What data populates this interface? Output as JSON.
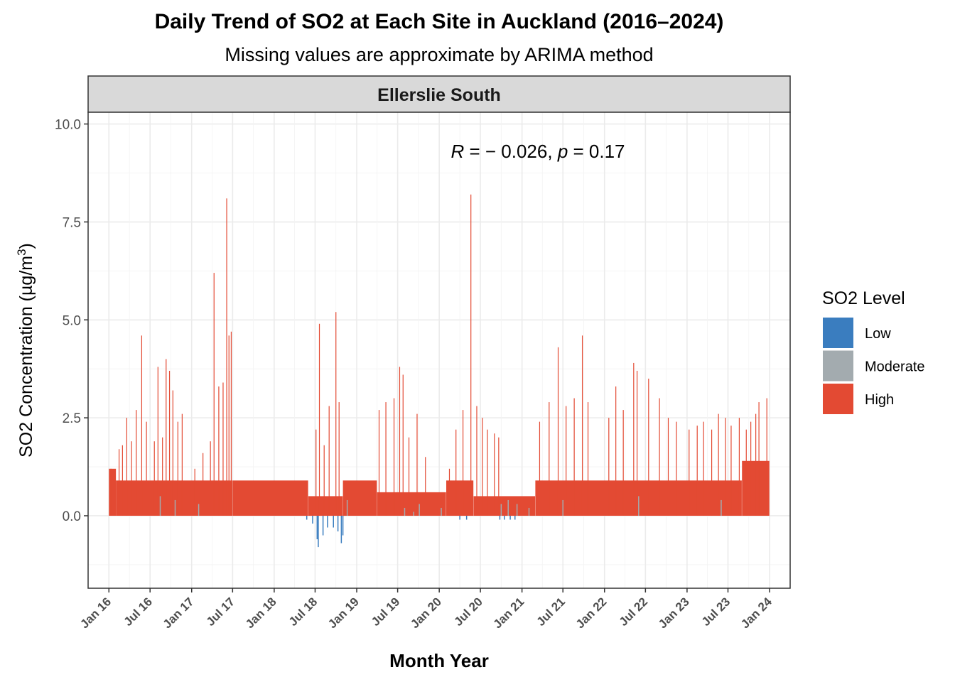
{
  "title": "Daily Trend of SO2 at Each Site in Auckland (2016–2024)",
  "subtitle": "Missing values are approximate by ARIMA method",
  "facet": "Ellerslie South",
  "annotation": {
    "r_label": "R",
    "r_value": " = − 0.026, ",
    "p_label": "p",
    "p_value": " = 0.17"
  },
  "chart_data": {
    "type": "bar",
    "title": "Daily Trend of SO2 at Each Site in Auckland (2016–2024)",
    "subtitle": "Missing values are approximate by ARIMA method",
    "facet": "Ellerslie South",
    "xlabel": "Month Year",
    "ylabel": "SO2 Concentration (µg/m³)",
    "ylabel_parts": {
      "main": "SO2 Concentration (µg/m",
      "sup": "3",
      "close": ")"
    },
    "xlim": [
      "2015-10-01",
      "2024-04-01"
    ],
    "ylim": [
      -1.85,
      10.3
    ],
    "yticks": [
      0.0,
      2.5,
      5.0,
      7.5,
      10.0
    ],
    "ytick_labels": [
      "0.0",
      "2.5",
      "5.0",
      "7.5",
      "10.0"
    ],
    "xticks": [
      "2016-01-01",
      "2016-07-01",
      "2017-01-01",
      "2017-07-01",
      "2018-01-01",
      "2018-07-01",
      "2019-01-01",
      "2019-07-01",
      "2020-01-01",
      "2020-07-01",
      "2021-01-01",
      "2021-07-01",
      "2022-01-01",
      "2022-07-01",
      "2023-01-01",
      "2023-07-01",
      "2024-01-01"
    ],
    "xtick_labels": [
      "Jan 16",
      "Jul 16",
      "Jan 17",
      "Jul 17",
      "Jan 18",
      "Jul 18",
      "Jan 19",
      "Jul 19",
      "Jan 20",
      "Jul 20",
      "Jan 21",
      "Jul 21",
      "Jan 22",
      "Jul 22",
      "Jan 23",
      "Jul 23",
      "Jan 24"
    ],
    "grid": true,
    "legend": {
      "title": "SO2 Level",
      "placement": "right",
      "items": [
        {
          "label": "Low",
          "color": "#3A7DBF"
        },
        {
          "label": "Moderate",
          "color": "#A3ABAF"
        },
        {
          "label": "High",
          "color": "#E34A33"
        }
      ]
    },
    "correlation": {
      "R": -0.026,
      "p": 0.17
    },
    "series": [
      {
        "name": "High",
        "color": "#E34A33",
        "segments": [
          {
            "start": "2016-01-01",
            "end": "2016-02-01",
            "base": 1.2
          },
          {
            "start": "2016-02-01",
            "end": "2017-06-30",
            "base": 0.9
          },
          {
            "start": "2017-07-01",
            "end": "2018-05-31",
            "base": 0.9
          },
          {
            "start": "2018-06-01",
            "end": "2018-10-31",
            "base": 0.5
          },
          {
            "start": "2018-11-01",
            "end": "2019-03-31",
            "base": 0.9
          },
          {
            "start": "2019-04-01",
            "end": "2020-01-31",
            "base": 0.6
          },
          {
            "start": "2020-02-01",
            "end": "2020-05-31",
            "base": 0.9
          },
          {
            "start": "2020-06-01",
            "end": "2021-02-28",
            "base": 0.5
          },
          {
            "start": "2021-03-01",
            "end": "2023-08-31",
            "base": 0.9
          },
          {
            "start": "2023-09-01",
            "end": "2023-12-31",
            "base": 1.4
          }
        ],
        "peaks": [
          {
            "date": "2016-01-10",
            "value": 1.2
          },
          {
            "date": "2016-02-15",
            "value": 1.7
          },
          {
            "date": "2016-03-01",
            "value": 1.8
          },
          {
            "date": "2016-03-20",
            "value": 2.5
          },
          {
            "date": "2016-04-10",
            "value": 1.9
          },
          {
            "date": "2016-05-01",
            "value": 2.7
          },
          {
            "date": "2016-05-25",
            "value": 4.6
          },
          {
            "date": "2016-06-15",
            "value": 2.4
          },
          {
            "date": "2016-07-20",
            "value": 1.9
          },
          {
            "date": "2016-08-05",
            "value": 3.8
          },
          {
            "date": "2016-08-25",
            "value": 2.0
          },
          {
            "date": "2016-09-10",
            "value": 4.0
          },
          {
            "date": "2016-09-25",
            "value": 3.7
          },
          {
            "date": "2016-10-10",
            "value": 3.2
          },
          {
            "date": "2016-11-01",
            "value": 2.4
          },
          {
            "date": "2016-11-20",
            "value": 2.6
          },
          {
            "date": "2017-01-15",
            "value": 1.2
          },
          {
            "date": "2017-02-20",
            "value": 1.6
          },
          {
            "date": "2017-03-25",
            "value": 1.9
          },
          {
            "date": "2017-04-10",
            "value": 6.2
          },
          {
            "date": "2017-05-01",
            "value": 3.3
          },
          {
            "date": "2017-05-20",
            "value": 3.4
          },
          {
            "date": "2017-06-05",
            "value": 8.1
          },
          {
            "date": "2017-06-15",
            "value": 4.6
          },
          {
            "date": "2017-06-25",
            "value": 4.7
          },
          {
            "date": "2018-07-05",
            "value": 2.2
          },
          {
            "date": "2018-07-20",
            "value": 4.9
          },
          {
            "date": "2018-08-10",
            "value": 1.8
          },
          {
            "date": "2018-09-01",
            "value": 2.8
          },
          {
            "date": "2018-10-01",
            "value": 5.2
          },
          {
            "date": "2018-10-15",
            "value": 2.9
          },
          {
            "date": "2019-04-10",
            "value": 2.7
          },
          {
            "date": "2019-05-10",
            "value": 2.9
          },
          {
            "date": "2019-06-15",
            "value": 3.0
          },
          {
            "date": "2019-07-10",
            "value": 3.8
          },
          {
            "date": "2019-07-25",
            "value": 3.6
          },
          {
            "date": "2019-08-20",
            "value": 2.0
          },
          {
            "date": "2019-09-25",
            "value": 2.6
          },
          {
            "date": "2019-11-01",
            "value": 1.5
          },
          {
            "date": "2020-02-15",
            "value": 1.2
          },
          {
            "date": "2020-03-15",
            "value": 2.2
          },
          {
            "date": "2020-04-15",
            "value": 2.7
          },
          {
            "date": "2020-05-20",
            "value": 8.2
          },
          {
            "date": "2020-06-15",
            "value": 2.8
          },
          {
            "date": "2020-07-10",
            "value": 2.5
          },
          {
            "date": "2020-08-01",
            "value": 2.2
          },
          {
            "date": "2020-09-01",
            "value": 2.1
          },
          {
            "date": "2020-09-20",
            "value": 2.0
          },
          {
            "date": "2021-03-20",
            "value": 2.4
          },
          {
            "date": "2021-05-01",
            "value": 2.9
          },
          {
            "date": "2021-06-10",
            "value": 4.3
          },
          {
            "date": "2021-07-15",
            "value": 2.8
          },
          {
            "date": "2021-08-20",
            "value": 3.0
          },
          {
            "date": "2021-09-25",
            "value": 4.6
          },
          {
            "date": "2021-10-20",
            "value": 2.9
          },
          {
            "date": "2022-01-20",
            "value": 2.5
          },
          {
            "date": "2022-02-20",
            "value": 3.3
          },
          {
            "date": "2022-03-25",
            "value": 2.7
          },
          {
            "date": "2022-05-10",
            "value": 3.9
          },
          {
            "date": "2022-05-25",
            "value": 3.7
          },
          {
            "date": "2022-07-15",
            "value": 3.5
          },
          {
            "date": "2022-09-01",
            "value": 3.0
          },
          {
            "date": "2022-10-10",
            "value": 2.5
          },
          {
            "date": "2022-11-15",
            "value": 2.4
          },
          {
            "date": "2023-01-10",
            "value": 2.2
          },
          {
            "date": "2023-02-15",
            "value": 2.3
          },
          {
            "date": "2023-03-15",
            "value": 2.4
          },
          {
            "date": "2023-04-20",
            "value": 2.2
          },
          {
            "date": "2023-05-20",
            "value": 2.6
          },
          {
            "date": "2023-06-20",
            "value": 2.5
          },
          {
            "date": "2023-07-15",
            "value": 2.3
          },
          {
            "date": "2023-08-20",
            "value": 2.5
          },
          {
            "date": "2023-09-20",
            "value": 2.2
          },
          {
            "date": "2023-10-10",
            "value": 2.4
          },
          {
            "date": "2023-11-01",
            "value": 2.6
          },
          {
            "date": "2023-11-15",
            "value": 2.9
          },
          {
            "date": "2023-12-20",
            "value": 3.0
          }
        ]
      },
      {
        "name": "Moderate",
        "color": "#A3ABAF",
        "values": [
          {
            "date": "2016-08-15",
            "value": 0.5
          },
          {
            "date": "2016-10-20",
            "value": 0.4
          },
          {
            "date": "2017-02-01",
            "value": 0.3
          },
          {
            "date": "2018-11-20",
            "value": 0.4
          },
          {
            "date": "2019-08-01",
            "value": 0.2
          },
          {
            "date": "2019-09-10",
            "value": 0.1
          },
          {
            "date": "2019-10-05",
            "value": 0.3
          },
          {
            "date": "2020-01-10",
            "value": 0.2
          },
          {
            "date": "2020-10-01",
            "value": 0.3
          },
          {
            "date": "2020-11-01",
            "value": 0.4
          },
          {
            "date": "2020-12-10",
            "value": 0.3
          },
          {
            "date": "2021-02-01",
            "value": 0.2
          },
          {
            "date": "2021-07-01",
            "value": 0.4
          },
          {
            "date": "2022-06-01",
            "value": 0.5
          },
          {
            "date": "2023-06-01",
            "value": 0.4
          }
        ]
      },
      {
        "name": "Low",
        "color": "#3A7DBF",
        "values": [
          {
            "date": "2018-05-25",
            "value": -0.1
          },
          {
            "date": "2018-06-20",
            "value": -0.2
          },
          {
            "date": "2018-07-10",
            "value": -0.6
          },
          {
            "date": "2018-07-15",
            "value": -0.8
          },
          {
            "date": "2018-08-05",
            "value": -0.5
          },
          {
            "date": "2018-08-25",
            "value": -0.3
          },
          {
            "date": "2018-09-20",
            "value": -0.3
          },
          {
            "date": "2018-10-10",
            "value": -0.4
          },
          {
            "date": "2018-10-25",
            "value": -0.7
          },
          {
            "date": "2018-11-01",
            "value": -0.5
          },
          {
            "date": "2020-04-01",
            "value": -0.1
          },
          {
            "date": "2020-05-01",
            "value": -0.1
          },
          {
            "date": "2020-09-25",
            "value": -0.1
          },
          {
            "date": "2020-10-15",
            "value": -0.1
          },
          {
            "date": "2020-11-10",
            "value": -0.1
          },
          {
            "date": "2020-12-01",
            "value": -0.1
          }
        ]
      }
    ]
  }
}
